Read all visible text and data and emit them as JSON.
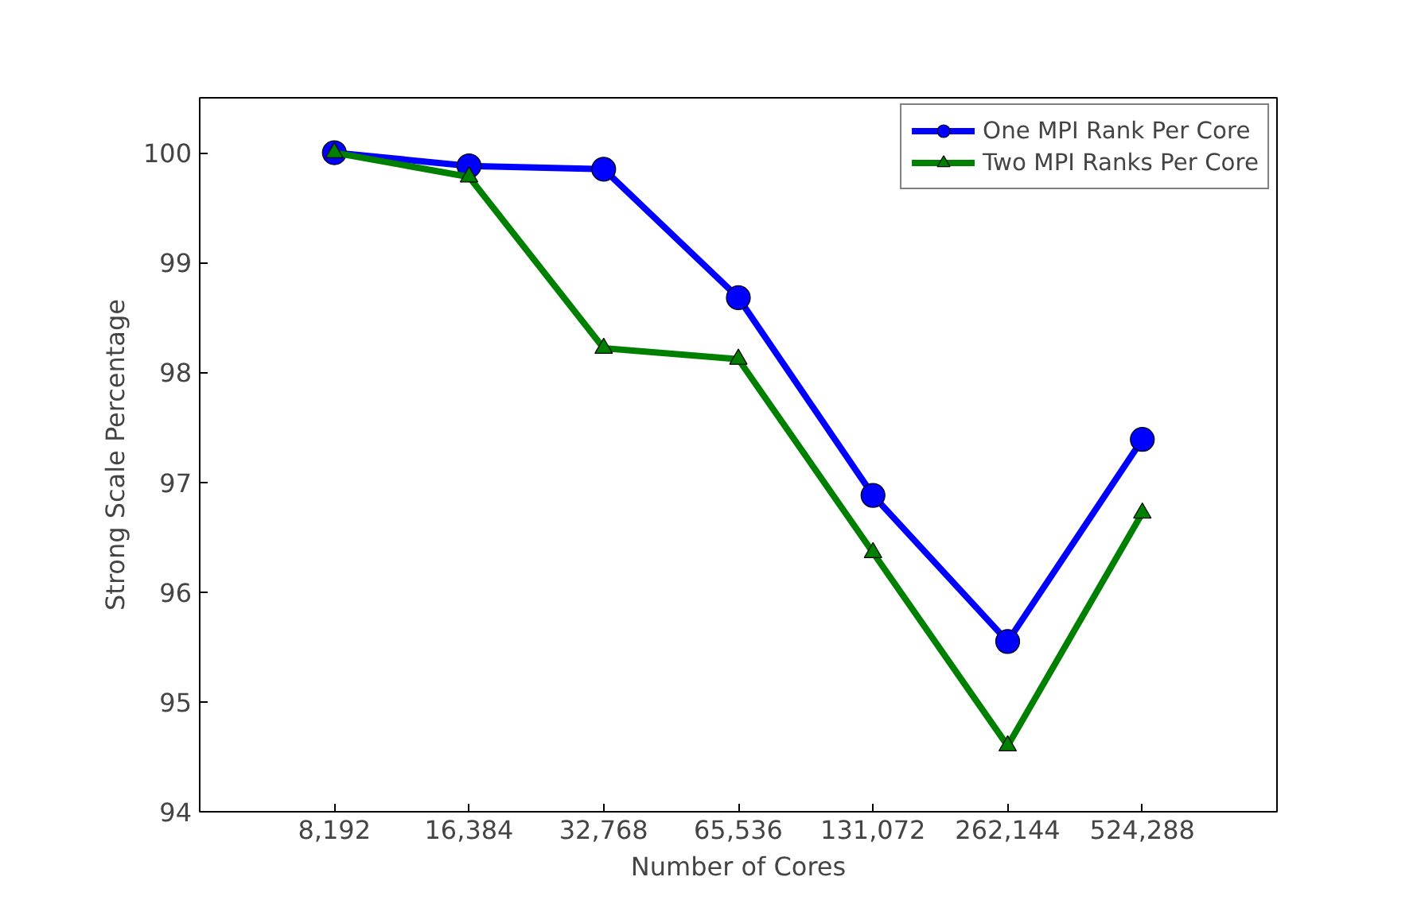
{
  "chart_data": {
    "type": "line",
    "xlabel": "Number of Cores",
    "ylabel": "Strong Scale Percentage",
    "categories": [
      "8,192",
      "16,384",
      "32,768",
      "65,536",
      "131,072",
      "262,144",
      "524,288"
    ],
    "series": [
      {
        "name": "One MPI Rank Per Core",
        "color": "#0000ff",
        "marker": "circle",
        "values": [
          100,
          99.88,
          99.85,
          98.68,
          96.88,
          95.55,
          97.39
        ]
      },
      {
        "name": "Two MPI Ranks Per Core",
        "color": "#008000",
        "marker": "triangle",
        "values": [
          100,
          99.78,
          98.22,
          98.12,
          96.36,
          94.6,
          96.72
        ]
      }
    ],
    "ylim": [
      94,
      100.5
    ],
    "yticks": [
      94,
      95,
      96,
      97,
      98,
      99,
      100
    ],
    "legend": "top right",
    "line_style": "solid"
  }
}
